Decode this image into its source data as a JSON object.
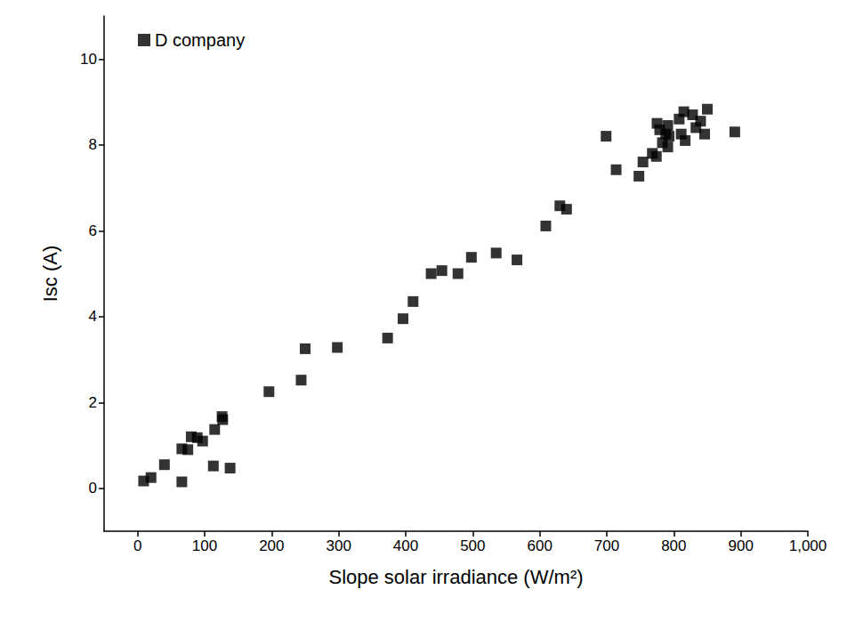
{
  "chart_data": {
    "type": "scatter",
    "x_label": "Slope solar irradiance (W/m²)",
    "y_label": "Isc (A)",
    "x": [
      9,
      20,
      40,
      66,
      66,
      75,
      80,
      89,
      97,
      115,
      113,
      126,
      127,
      138,
      196,
      244,
      250,
      298,
      373,
      396,
      411,
      438,
      454,
      478,
      498,
      535,
      566,
      609,
      630,
      640,
      699,
      714,
      748,
      754,
      768,
      774,
      775,
      779,
      783,
      788,
      791,
      791,
      793,
      808,
      811,
      815,
      817,
      828,
      833,
      840,
      846,
      850,
      891
    ],
    "series": [
      {
        "name": "D company",
        "color": "#000000",
        "marker": "square",
        "values": [
          0.17,
          0.25,
          0.55,
          0.15,
          0.92,
          0.9,
          1.2,
          1.18,
          1.1,
          1.37,
          0.52,
          1.67,
          1.6,
          0.47,
          2.25,
          2.52,
          3.25,
          3.28,
          3.5,
          3.95,
          4.35,
          5.0,
          5.07,
          5.0,
          5.38,
          5.48,
          5.32,
          6.11,
          6.58,
          6.5,
          8.2,
          7.42,
          7.27,
          7.6,
          7.8,
          7.73,
          8.5,
          8.35,
          8.05,
          8.25,
          8.45,
          7.95,
          8.2,
          8.6,
          8.25,
          8.77,
          8.1,
          8.7,
          8.4,
          8.55,
          8.25,
          8.83,
          8.3
        ]
      }
    ],
    "xlim": [
      -50,
      1000
    ],
    "xticks": [
      0,
      100,
      200,
      300,
      400,
      500,
      600,
      700,
      800,
      900,
      1000
    ],
    "ylim": [
      -1,
      11
    ],
    "yticks": [
      0,
      2,
      4,
      6,
      8,
      10
    ],
    "legend": "upper left",
    "grid": false
  }
}
